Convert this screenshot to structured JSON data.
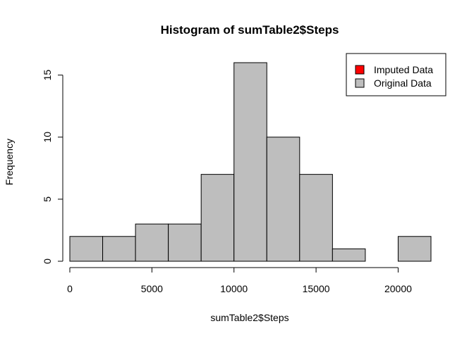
{
  "chart_data": {
    "type": "bar",
    "title": "Histogram of sumTable2$Steps",
    "xlabel": "sumTable2$Steps",
    "ylabel": "Frequency",
    "bin_edges": [
      0,
      2000,
      4000,
      6000,
      8000,
      10000,
      12000,
      14000,
      16000,
      18000,
      20000,
      22000
    ],
    "values": [
      2,
      2,
      3,
      3,
      7,
      16,
      10,
      7,
      1,
      0,
      2
    ],
    "xlim": [
      0,
      22000
    ],
    "ylim": [
      0,
      16
    ],
    "x_ticks": [
      0,
      5000,
      10000,
      15000,
      20000
    ],
    "x_tick_labels": [
      "0",
      "5000",
      "10000",
      "15000",
      "20000"
    ],
    "y_ticks": [
      0,
      5,
      10,
      15
    ],
    "y_tick_labels": [
      "0",
      "5",
      "10",
      "15"
    ],
    "grid": false,
    "legend_position": "top-right",
    "legend": [
      {
        "label": "Imputed Data",
        "color": "#ff0000"
      },
      {
        "label": "Original Data",
        "color": "#bebebe"
      }
    ],
    "bar_color": "#bebebe",
    "bar_border_color": "#000000"
  }
}
